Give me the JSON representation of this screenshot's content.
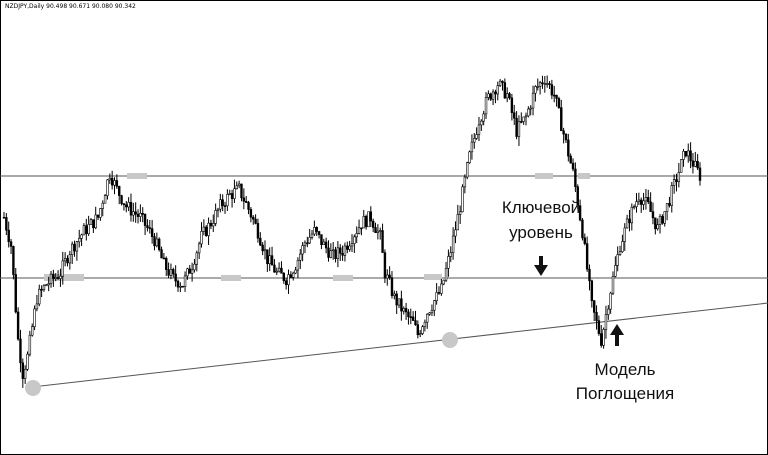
{
  "header": {
    "symbol_line": "NZDJPY,Daily  90.498 90.671 90.080 90.342"
  },
  "annotations": {
    "key_level_line1": "Ключевой",
    "key_level_line2": "уровень",
    "pattern_line1": "Модель",
    "pattern_line2": "Поглощения"
  },
  "colors": {
    "candle": "#000000",
    "level_line": "#555555",
    "trend_line": "#555555",
    "highlight": "#c8c8c8"
  },
  "chart_data": {
    "type": "candlestick",
    "title": "NZDJPY,Daily",
    "ohlc_last": {
      "open": 90.498,
      "high": 90.671,
      "low": 90.08,
      "close": 90.342
    },
    "key_levels": [
      "upper resistance",
      "lower support"
    ],
    "path": [
      [
        0,
        0.62
      ],
      [
        3,
        0.52
      ],
      [
        6,
        0.18
      ],
      [
        8,
        0.06
      ],
      [
        10,
        0.12
      ],
      [
        14,
        0.33
      ],
      [
        18,
        0.38
      ],
      [
        24,
        0.42
      ],
      [
        28,
        0.5
      ],
      [
        34,
        0.57
      ],
      [
        40,
        0.62
      ],
      [
        45,
        0.78
      ],
      [
        48,
        0.72
      ],
      [
        52,
        0.66
      ],
      [
        58,
        0.62
      ],
      [
        64,
        0.54
      ],
      [
        68,
        0.45
      ],
      [
        72,
        0.4
      ],
      [
        76,
        0.38
      ],
      [
        80,
        0.45
      ],
      [
        84,
        0.55
      ],
      [
        88,
        0.6
      ],
      [
        92,
        0.66
      ],
      [
        96,
        0.7
      ],
      [
        100,
        0.72
      ],
      [
        104,
        0.65
      ],
      [
        108,
        0.57
      ],
      [
        112,
        0.47
      ],
      [
        116,
        0.42
      ],
      [
        120,
        0.4
      ],
      [
        124,
        0.45
      ],
      [
        128,
        0.53
      ],
      [
        132,
        0.57
      ],
      [
        136,
        0.52
      ],
      [
        140,
        0.48
      ],
      [
        144,
        0.5
      ],
      [
        148,
        0.55
      ],
      [
        152,
        0.6
      ],
      [
        156,
        0.62
      ],
      [
        160,
        0.55
      ],
      [
        162,
        0.42
      ],
      [
        164,
        0.38
      ],
      [
        166,
        0.33
      ],
      [
        170,
        0.28
      ],
      [
        174,
        0.24
      ],
      [
        176,
        0.2
      ],
      [
        180,
        0.28
      ],
      [
        186,
        0.36
      ],
      [
        190,
        0.5
      ],
      [
        194,
        0.66
      ],
      [
        198,
        0.84
      ],
      [
        202,
        0.97
      ],
      [
        206,
        1.05
      ],
      [
        210,
        1.1
      ],
      [
        214,
        1.06
      ],
      [
        218,
        0.93
      ],
      [
        222,
        0.98
      ],
      [
        226,
        1.08
      ],
      [
        230,
        1.12
      ],
      [
        234,
        1.06
      ],
      [
        238,
        0.92
      ],
      [
        242,
        0.78
      ],
      [
        246,
        0.57
      ],
      [
        250,
        0.3
      ],
      [
        254,
        0.18
      ],
      [
        258,
        0.36
      ],
      [
        262,
        0.52
      ],
      [
        266,
        0.62
      ],
      [
        270,
        0.7
      ],
      [
        274,
        0.66
      ],
      [
        278,
        0.58
      ],
      [
        282,
        0.66
      ],
      [
        286,
        0.76
      ],
      [
        290,
        0.86
      ],
      [
        294,
        0.8
      ],
      [
        296,
        0.77
      ]
    ]
  }
}
